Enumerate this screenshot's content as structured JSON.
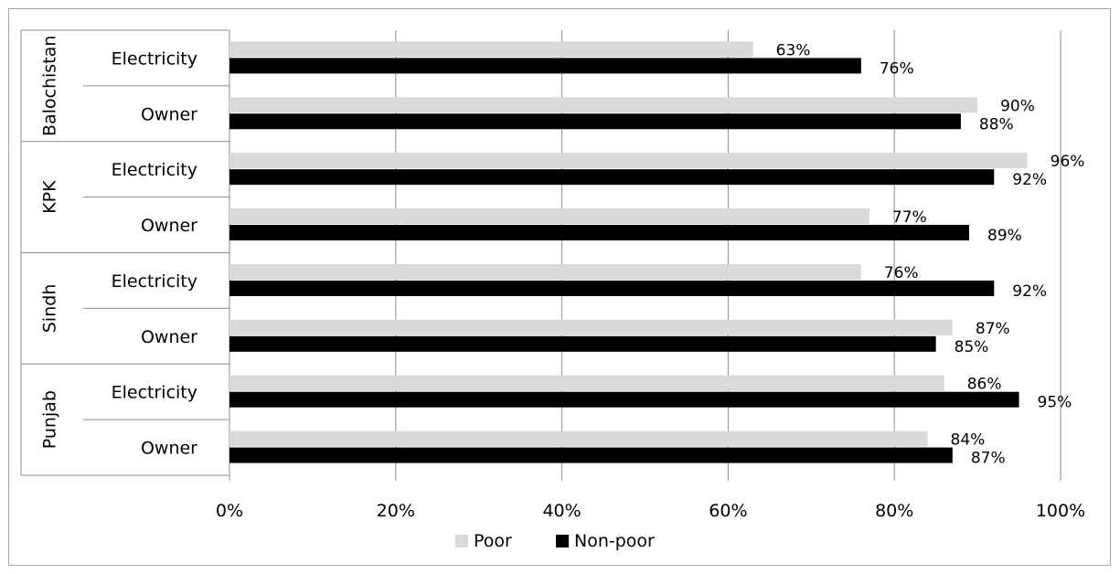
{
  "chart_data": {
    "type": "bar",
    "orientation": "horizontal",
    "groups": [
      {
        "region": "Balochistan",
        "items": [
          {
            "label": "Electricity",
            "poor": 63,
            "non_poor": 76,
            "poor_label": "63%",
            "non_poor_label": "76%"
          },
          {
            "label": "Owner",
            "poor": 90,
            "non_poor": 88,
            "poor_label": "90%",
            "non_poor_label": "88%"
          }
        ]
      },
      {
        "region": "KPK",
        "items": [
          {
            "label": "Electricity",
            "poor": 96,
            "non_poor": 92,
            "poor_label": "96%",
            "non_poor_label": "92%"
          },
          {
            "label": "Owner",
            "poor": 77,
            "non_poor": 89,
            "poor_label": "77%",
            "non_poor_label": "89%"
          }
        ]
      },
      {
        "region": "Sindh",
        "items": [
          {
            "label": "Electricity",
            "poor": 76,
            "non_poor": 92,
            "poor_label": "76%",
            "non_poor_label": "92%"
          },
          {
            "label": "Owner",
            "poor": 87,
            "non_poor": 85,
            "poor_label": "87%",
            "non_poor_label": "85%"
          }
        ]
      },
      {
        "region": "Punjab",
        "items": [
          {
            "label": "Electricity",
            "poor": 86,
            "non_poor": 95,
            "poor_label": "86%",
            "non_poor_label": "95%"
          },
          {
            "label": "Owner",
            "poor": 84,
            "non_poor": 87,
            "poor_label": "84%",
            "non_poor_label": "87%"
          }
        ]
      }
    ],
    "series": [
      {
        "name": "Poor",
        "key": "poor",
        "color": "#d9d9d9"
      },
      {
        "name": "Non-poor",
        "key": "non_poor",
        "color": "#000000"
      }
    ],
    "x_ticks": [
      "0%",
      "20%",
      "40%",
      "60%",
      "80%",
      "100%"
    ],
    "xlim": [
      0,
      100
    ],
    "grid": true,
    "legend_position": "bottom"
  }
}
